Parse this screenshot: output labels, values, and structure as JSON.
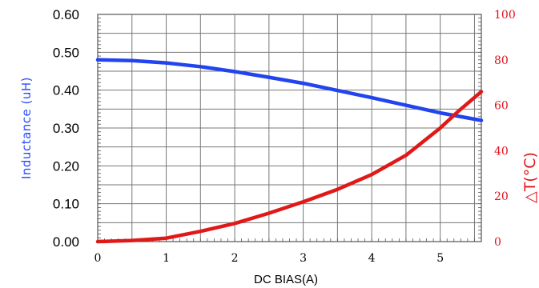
{
  "chart_data": {
    "type": "line",
    "xlabel": "DC BIAS(A)",
    "x_ticks": [
      "0",
      "1",
      "2",
      "3",
      "4",
      "5"
    ],
    "xlim": [
      0,
      5.6
    ],
    "left_axis": {
      "label": "Inductance (uH)",
      "ylim": [
        0,
        0.6
      ],
      "ticks": [
        "0.00",
        "0.10",
        "0.20",
        "0.30",
        "0.40",
        "0.50",
        "0.60"
      ]
    },
    "right_axis": {
      "label": "△T(°C)",
      "ylim": [
        0,
        100
      ],
      "ticks": [
        "0",
        "20",
        "40",
        "60",
        "80",
        "100"
      ]
    },
    "grid": true,
    "series": [
      {
        "axis": "left",
        "color": "#2244ee",
        "points": [
          [
            0,
            0.48
          ],
          [
            0.5,
            0.478
          ],
          [
            1.0,
            0.472
          ],
          [
            1.5,
            0.462
          ],
          [
            2.0,
            0.449
          ],
          [
            2.5,
            0.434
          ],
          [
            3.0,
            0.418
          ],
          [
            3.5,
            0.399
          ],
          [
            4.0,
            0.38
          ],
          [
            4.5,
            0.36
          ],
          [
            5.0,
            0.34
          ],
          [
            5.6,
            0.32
          ]
        ]
      },
      {
        "axis": "right",
        "color": "#e01818",
        "points": [
          [
            0,
            0
          ],
          [
            0.5,
            0.5
          ],
          [
            1.0,
            1.5
          ],
          [
            1.5,
            4.5
          ],
          [
            2.0,
            8.0
          ],
          [
            2.5,
            12.5
          ],
          [
            3.0,
            17.5
          ],
          [
            3.5,
            23.0
          ],
          [
            4.0,
            29.5
          ],
          [
            4.5,
            38.0
          ],
          [
            5.0,
            50.0
          ],
          [
            5.25,
            57.0
          ],
          [
            5.6,
            66.0
          ]
        ]
      }
    ]
  }
}
